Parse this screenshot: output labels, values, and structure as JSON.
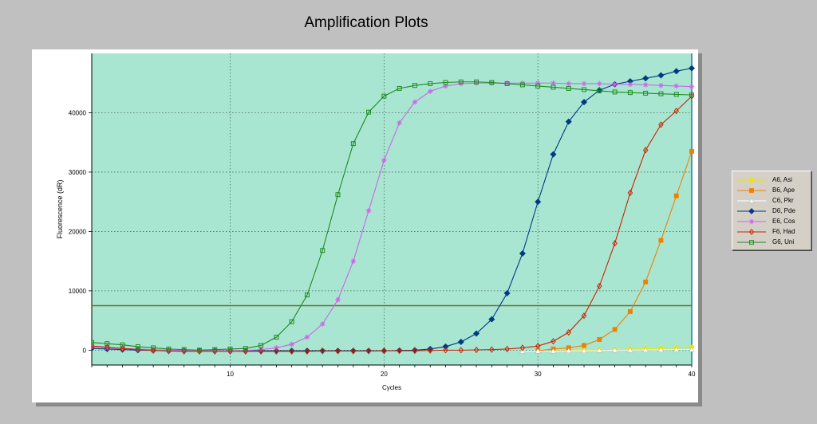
{
  "title": "Amplification Plots",
  "chart_data": {
    "type": "line",
    "title": "Amplification Plots",
    "xlabel": "Cycles",
    "ylabel": "Fluorescence (dR)",
    "xlim": [
      1,
      40
    ],
    "ylim": [
      -2500,
      50000
    ],
    "x_ticks": [
      10,
      20,
      30,
      40
    ],
    "y_ticks": [
      0,
      10000,
      20000,
      30000,
      40000
    ],
    "grid": true,
    "background_color": "#a8e6d2",
    "threshold": 7500,
    "legend_position": "right",
    "x": [
      1,
      2,
      3,
      4,
      5,
      6,
      7,
      8,
      9,
      10,
      11,
      12,
      13,
      14,
      15,
      16,
      17,
      18,
      19,
      20,
      21,
      22,
      23,
      24,
      25,
      26,
      27,
      28,
      29,
      30,
      31,
      32,
      33,
      34,
      35,
      36,
      37,
      38,
      39,
      40
    ],
    "series": [
      {
        "name": "A6, Asi",
        "color": "#e8e800",
        "marker": "circle",
        "values": [
          null,
          null,
          null,
          null,
          null,
          null,
          null,
          null,
          null,
          null,
          null,
          null,
          null,
          null,
          null,
          null,
          null,
          null,
          null,
          null,
          null,
          null,
          null,
          null,
          null,
          null,
          null,
          null,
          null,
          -200,
          -100,
          -50,
          0,
          50,
          100,
          200,
          250,
          300,
          400,
          500
        ]
      },
      {
        "name": "B6, Ape",
        "color": "#f08000",
        "marker": "square",
        "values": [
          null,
          null,
          null,
          null,
          null,
          null,
          null,
          null,
          null,
          null,
          null,
          null,
          null,
          null,
          null,
          null,
          null,
          null,
          null,
          null,
          null,
          null,
          null,
          null,
          null,
          null,
          null,
          null,
          null,
          -100,
          200,
          400,
          800,
          1800,
          3500,
          6500,
          11500,
          18500,
          26000,
          33500
        ]
      },
      {
        "name": "C6, Pkr",
        "color": "#ffffff",
        "marker": "triangle",
        "values": [
          null,
          null,
          null,
          null,
          null,
          null,
          null,
          null,
          null,
          null,
          null,
          null,
          null,
          null,
          null,
          null,
          null,
          null,
          null,
          null,
          null,
          null,
          null,
          null,
          null,
          null,
          null,
          null,
          -200,
          -150,
          -150,
          -100,
          -100,
          -50,
          0,
          0,
          50,
          50,
          100,
          100
        ]
      },
      {
        "name": "D6, Pde",
        "color": "#003a80",
        "marker": "diamond",
        "values": [
          300,
          200,
          100,
          0,
          -50,
          -100,
          -100,
          -100,
          -100,
          -100,
          -100,
          -100,
          -100,
          -100,
          -100,
          -100,
          -100,
          -100,
          -100,
          -100,
          -50,
          0,
          200,
          600,
          1400,
          2800,
          5200,
          9600,
          16300,
          25000,
          33000,
          38500,
          41800,
          43800,
          44800,
          45300,
          45800,
          46300,
          47000,
          47500
        ]
      },
      {
        "name": "E6, Cos",
        "color": "#cc66e6",
        "marker": "star",
        "values": [
          600,
          400,
          300,
          200,
          100,
          0,
          -50,
          -100,
          -100,
          -100,
          -50,
          100,
          400,
          1000,
          2200,
          4400,
          8500,
          15000,
          23500,
          32000,
          38300,
          41800,
          43600,
          44500,
          44900,
          45000,
          45000,
          45000,
          45000,
          45000,
          45000,
          44900,
          44900,
          44900,
          44800,
          44800,
          44700,
          44600,
          44500,
          44400
        ]
      },
      {
        "name": "F6, Had",
        "color": "#cc2200",
        "marker": "open-diamond",
        "values": [
          700,
          500,
          300,
          100,
          -50,
          -150,
          -200,
          -200,
          -200,
          -200,
          -200,
          -200,
          -200,
          -200,
          -200,
          -150,
          -150,
          -150,
          -150,
          -100,
          -100,
          -100,
          -50,
          0,
          0,
          50,
          100,
          200,
          400,
          700,
          1500,
          3000,
          5800,
          10800,
          18000,
          26500,
          33700,
          38000,
          40300,
          42800
        ]
      },
      {
        "name": "G6, Uni",
        "color": "#1f8a1f",
        "marker": "open-square",
        "values": [
          1300,
          1100,
          900,
          600,
          400,
          200,
          100,
          0,
          100,
          200,
          300,
          800,
          2200,
          4800,
          9300,
          16800,
          26200,
          34800,
          40100,
          42800,
          44100,
          44600,
          44900,
          45100,
          45200,
          45200,
          45100,
          44900,
          44700,
          44500,
          44300,
          44100,
          43900,
          43700,
          43500,
          43400,
          43300,
          43200,
          43100,
          43000
        ]
      }
    ]
  }
}
